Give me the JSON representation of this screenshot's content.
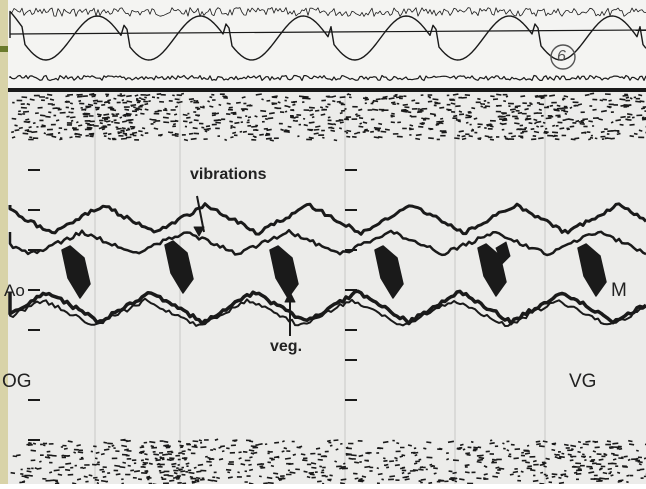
{
  "colors": {
    "paper": "#ececea",
    "ink": "#1a1a1a",
    "sidebar": "#d8d3a8",
    "accent": "#6a7a2c"
  },
  "panel_marker": "6",
  "labels": {
    "vibrations": "vibrations",
    "veg": "veg.",
    "ao": "Ao",
    "m": "M",
    "og": "OG",
    "vg": "VG"
  }
}
